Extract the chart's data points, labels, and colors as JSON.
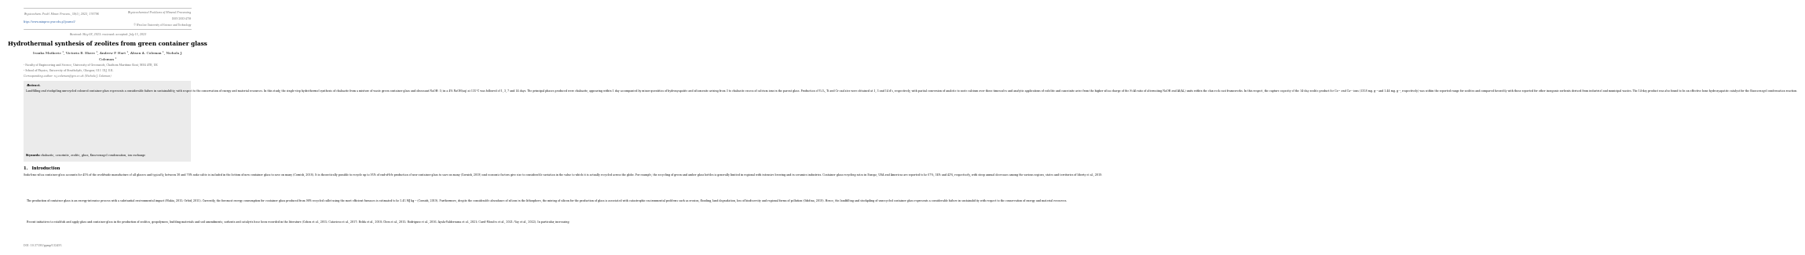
{
  "header_left1": "Physicochem. Probl. Miner. Process., 59(5), 2023, 176796",
  "header_left2": "https://www.minproc.pwr.edu.pl/journal/",
  "header_right1": "Physicochemical Problems of Mineral Processing",
  "header_right2": "ISSN 2083-4799",
  "header_right3": "© Wroclaw University of Science and Technology",
  "received": "Received: May 08, 2023; reviewed; accepted: July 15, 2023",
  "title": "Hydrothermal synthesis of zeolites from green container glass",
  "author_line1": "Ivanka Matkovic ¹, Victoria B. Ekere ¹, Andrew P. Hart ¹, Alison A. Coleman ¹, Nichola J.",
  "author_line2": "Coleman ¹",
  "affil1": "¹ Faculty of Engineering and Science, University of Greenwich, Chatham Maritime Kent, ME4 4TB, UK",
  "affil2": "² School of Physics, University of Strathclyde, Glasgow, G11 1XJ, U.K.",
  "corr": "Corresponding author: n.j.coleman@gre.ac.uk (Nichola J. Coleman)",
  "abstract_label": "Abstract.",
  "abstract_body": "Landfilling and stockpiling unrecycled coloured container glass represents a considerable failure in sustainability, with respect to the conservation of energy and material resources. In this study, the single-step hydrothermal synthesis of chabazite from a mixture of waste green container glass and obsessant NaOH: 1) in a 4% NaOH(aq) at 135°C was followed of 1, 3, 7 and 14 days. The principal phases produced were chabazite, appearing within 1 day accompanied by minor quantities of hydroxyapatite and silicmanite arising from 3 to chabasite excess of calcium ions in the parent glass. Production of V₂O₃, Ti and Cr oxalates were obtained at 1, 3 and 14 d’s, respectively, with partial conversion of analcite to soote calcium over those timescales and analytic applications of sodalite and cancrinite arise from the higher silica charge of the Si:Al ratio of alternating NaOH and Al(Al₂) units within the clan rock cast frameworks. In this respect, the capture capacity of the 14-day zeolite product for Ca²⁺ and Ca²⁺ ions (1358 mg. g⁻¹ and 1.44 mg. g⁻¹, respectively) was within the reported range for zeolites and compared favorably with those reported for other inorganic sorbents derived from industrial and municipal wastes. The 14-day product was also found to be an effective bone hydroxyapatite catalyst for the Knoevenagel condensation reaction.",
  "keywords_label": "Keywords:",
  "keywords_body": "chabazite, cancrinite, zeolite, glass, Knoevenagel condensation, ion exchange",
  "section1": "1.   Introduction",
  "intro_p1": "Soda-lime-silica container glass accounts for 45% of the worldwide manufacture of all glasses and typically, between 30 and 70% soda-calite is included in the bottom of new container glass to save on many (Cornish, 2018). It is theoretically possible to recycle up to 95% of end-of-life production of new container glass to save on many (Cornish, 2019) and economic factors give rise to considerable variation in the value to which it is actually recycled across the globe. For example, the recycling of green and amber glass bottles is generally limited in regional with intensive brewing and in ceramics industries. Container glass recycling rates in Europe, USA and Americas are reported to be 67%, 34% and 42%, respectively, with steep annual decreases among the various regions, states and territories of liberty et al., 2019.",
  "intro_p2": "The production of container glass is an energy-intensive process with a substantial environmental impact (Makia, 2015; Orbid, 2015). Currently, the foremost energy consumption for container glass produced from 90% recycled cullet using the most efficient furnaces is estimated to be 5.45 MJ kg⁻¹ (Cornish, 2019). Furthermore, despite the considerable abundance of silicon in the lithosphere, the mining of silicon for the production of glass is associated with catastrophic environmental problems such as erosion, flooding, land degradation, loss of biodiversity and regional forms of pollution (Odidina, 2019). Hence, the landfilling and stockpiling of unrecycled container glass represents a considerable failure in sustainability with respect to the conservation of energy and material resources.",
  "intro_p3": "Recent initiatives to establish and apply glass and container glass in the production of zeolites, geopolymers, building materials and soil amendments, sorbents and catalysts have been recorded in the literature (Cohen et al., 2015; Catavieso et al., 2017; Belda et al., 2018; Chen et al., 2015; Rodriguez et al., 2016; Ayala-Valderrama et al., 2021; Carol-Morales et al., 2021; Vay et al., 2022). In particular, increasing",
  "doi": "DOI: 10.37190/ppmp/132495",
  "gray_box_color": "#ebebeb",
  "line_color": "#aaaaaa",
  "text_dark": "#111111",
  "text_gray": "#666666",
  "text_blue": "#3366aa"
}
